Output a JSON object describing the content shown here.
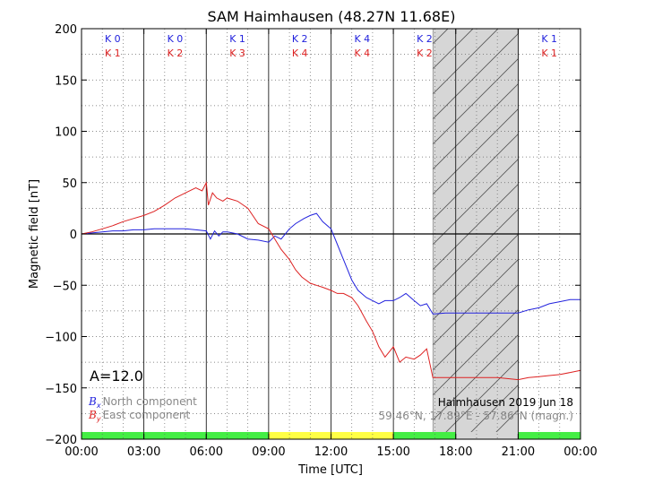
{
  "chart_data": {
    "type": "line",
    "title": "SAM Haimhausen (48.27N 11.68E)",
    "xlabel": "Time [UTC]",
    "ylabel": "Magnetic field [nT]",
    "xlim": [
      0,
      24
    ],
    "ylim": [
      -200,
      200
    ],
    "x_tick_labels": [
      "00:00",
      "03:00",
      "06:00",
      "09:00",
      "12:00",
      "15:00",
      "18:00",
      "21:00",
      "00:00"
    ],
    "y_tick_values": [
      200,
      150,
      100,
      50,
      0,
      -50,
      -100,
      -150,
      -200
    ],
    "y_tick_labels": [
      "200",
      "150",
      "100",
      "50",
      "0",
      "−50",
      "−100",
      "−150",
      "−200"
    ],
    "grid": true,
    "k_indices": [
      {
        "bx": "K 0",
        "by": "K 1"
      },
      {
        "bx": "K 0",
        "by": "K 2"
      },
      {
        "bx": "K 1",
        "by": "K 3"
      },
      {
        "bx": "K 2",
        "by": "K 4"
      },
      {
        "bx": "K 4",
        "by": "K 4"
      },
      {
        "bx": "K 2",
        "by": "K 2"
      },
      {
        "bx": "",
        "by": ""
      },
      {
        "bx": "K 1",
        "by": "K 1"
      }
    ],
    "activity_bar": [
      {
        "from": 0,
        "to": 9,
        "color": "#44ee44"
      },
      {
        "from": 9,
        "to": 15,
        "color": "#ffff44"
      },
      {
        "from": 15,
        "to": 18,
        "color": "#44ee44"
      },
      {
        "from": 18,
        "to": 21,
        "color": "#d6d6d6"
      },
      {
        "from": 21,
        "to": 24,
        "color": "#44ee44"
      }
    ],
    "no_data_range": [
      16.9,
      21
    ],
    "a_index": "A=12.0",
    "legend": {
      "position": "lower-left",
      "entries": [
        {
          "symbol": "B",
          "sub": "x",
          "text": "North component",
          "color": "#2222dd"
        },
        {
          "symbol": "B",
          "sub": "y",
          "text": "East component",
          "color": "#dd2222"
        }
      ]
    },
    "station_note": "Haimhausen 2019 Jun 18",
    "coord_note": "59.46°N, 17.89°E - 57.86°N (magn.)",
    "series": [
      {
        "name": "Bx North component",
        "color": "#2222dd",
        "x": [
          0,
          0.5,
          1,
          1.5,
          2,
          2.5,
          3,
          3.5,
          4,
          4.5,
          5,
          5.5,
          6,
          6.2,
          6.4,
          6.6,
          6.8,
          7,
          7.5,
          8,
          8.5,
          9,
          9.3,
          9.6,
          10,
          10.3,
          10.7,
          11,
          11.3,
          11.6,
          12,
          12.3,
          12.6,
          13,
          13.3,
          13.7,
          14,
          14.3,
          14.6,
          15,
          15.3,
          15.6,
          16,
          16.3,
          16.6,
          16.9,
          17,
          17.5,
          18,
          19,
          20,
          21,
          21.5,
          22,
          22.5,
          23,
          23.5,
          24
        ],
        "y": [
          0,
          1,
          2,
          3,
          3,
          4,
          4,
          5,
          5,
          5,
          5,
          4,
          3,
          -5,
          3,
          -2,
          2,
          2,
          0,
          -5,
          -6,
          -8,
          -2,
          -5,
          5,
          10,
          15,
          18,
          20,
          12,
          5,
          -10,
          -25,
          -45,
          -55,
          -62,
          -65,
          -68,
          -65,
          -65,
          -62,
          -58,
          -65,
          -70,
          -68,
          -78,
          -78,
          -77,
          -77,
          -77,
          -77,
          -77,
          -74,
          -72,
          -68,
          -66,
          -64,
          -64
        ]
      },
      {
        "name": "By East component",
        "color": "#dd2222",
        "x": [
          0,
          0.5,
          1,
          1.5,
          2,
          2.5,
          3,
          3.5,
          4,
          4.5,
          5,
          5.5,
          5.8,
          6,
          6.1,
          6.3,
          6.5,
          6.8,
          7,
          7.5,
          8,
          8.5,
          9,
          9.3,
          9.6,
          10,
          10.3,
          10.6,
          11,
          11.3,
          11.6,
          12,
          12.3,
          12.6,
          13,
          13.3,
          13.7,
          14,
          14.3,
          14.6,
          15,
          15.3,
          15.6,
          16,
          16.3,
          16.6,
          16.9,
          17,
          18,
          19,
          20,
          21,
          21.5,
          22,
          22.5,
          23,
          23.5,
          24
        ],
        "y": [
          0,
          2,
          5,
          8,
          12,
          15,
          18,
          22,
          28,
          35,
          40,
          45,
          42,
          50,
          28,
          40,
          35,
          32,
          35,
          32,
          25,
          10,
          5,
          -5,
          -15,
          -25,
          -35,
          -42,
          -48,
          -50,
          -52,
          -55,
          -58,
          -58,
          -62,
          -70,
          -85,
          -95,
          -110,
          -120,
          -110,
          -125,
          -120,
          -122,
          -118,
          -112,
          -140,
          -140,
          -140,
          -140,
          -140,
          -142,
          -140,
          -139,
          -138,
          -137,
          -135,
          -133
        ]
      }
    ]
  }
}
